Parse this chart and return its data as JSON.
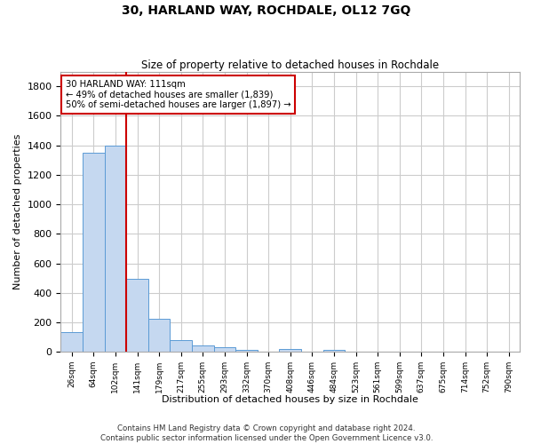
{
  "title": "30, HARLAND WAY, ROCHDALE, OL12 7GQ",
  "subtitle": "Size of property relative to detached houses in Rochdale",
  "xlabel": "Distribution of detached houses by size in Rochdale",
  "ylabel": "Number of detached properties",
  "footer_line1": "Contains HM Land Registry data © Crown copyright and database right 2024.",
  "footer_line2": "Contains public sector information licensed under the Open Government Licence v3.0.",
  "categories": [
    "26sqm",
    "64sqm",
    "102sqm",
    "141sqm",
    "179sqm",
    "217sqm",
    "255sqm",
    "293sqm",
    "332sqm",
    "370sqm",
    "408sqm",
    "446sqm",
    "484sqm",
    "523sqm",
    "561sqm",
    "599sqm",
    "637sqm",
    "675sqm",
    "714sqm",
    "752sqm",
    "790sqm"
  ],
  "values": [
    135,
    1350,
    1400,
    495,
    225,
    78,
    45,
    28,
    12,
    0,
    20,
    0,
    12,
    0,
    0,
    0,
    0,
    0,
    0,
    0,
    0
  ],
  "bar_color": "#c5d8f0",
  "bar_edge_color": "#5b9bd5",
  "red_line_x": 2,
  "annotation_text_line1": "30 HARLAND WAY: 111sqm",
  "annotation_text_line2": "← 49% of detached houses are smaller (1,839)",
  "annotation_text_line3": "50% of semi-detached houses are larger (1,897) →",
  "annotation_box_color": "#cc0000",
  "ylim": [
    0,
    1900
  ],
  "yticks": [
    0,
    200,
    400,
    600,
    800,
    1000,
    1200,
    1400,
    1600,
    1800
  ],
  "grid_color": "#cccccc",
  "background_color": "#ffffff",
  "axes_background": "#ffffff"
}
